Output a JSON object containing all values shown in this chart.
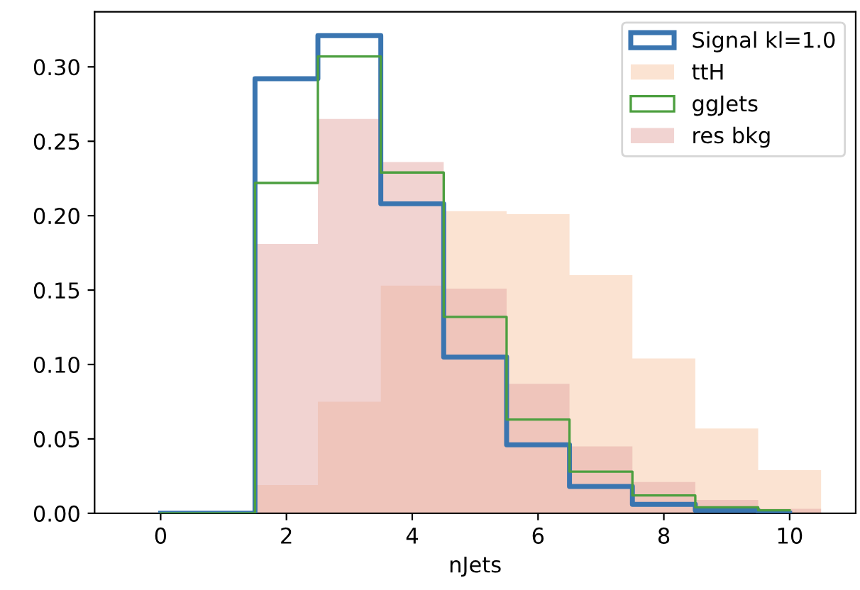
{
  "chart_data": {
    "type": "histogram",
    "xlabel": "nJets",
    "bins": [
      -0.5,
      0.5,
      1.5,
      2.5,
      3.5,
      4.5,
      5.5,
      6.5,
      7.5,
      8.5,
      9.5,
      10.5
    ],
    "series": [
      {
        "name": "Signal kl=1.0",
        "type": "step",
        "color": "#3a75b0",
        "x": [
          0,
          1,
          2,
          3,
          4,
          5,
          6,
          7,
          8,
          9,
          10
        ],
        "values": [
          0,
          0,
          0.292,
          0.321,
          0.208,
          0.105,
          0.046,
          0.018,
          0.006,
          0.002,
          0
        ]
      },
      {
        "name": "ttH",
        "color": "#fbe3d2",
        "values": [
          0,
          0,
          0.019,
          0.075,
          0.153,
          0.203,
          0.201,
          0.16,
          0.104,
          0.057,
          0.029
        ]
      },
      {
        "name": "ggJets",
        "type": "step",
        "color": "#4c9f3f",
        "x": [
          0,
          1,
          2,
          3,
          4,
          5,
          6,
          7,
          8,
          9,
          10
        ],
        "values": [
          0,
          0,
          0.222,
          0.307,
          0.229,
          0.132,
          0.063,
          0.028,
          0.012,
          0.004,
          0.002
        ]
      },
      {
        "name": "res bkg",
        "color": "#f1d3d1",
        "values": [
          0,
          0,
          0.181,
          0.265,
          0.236,
          0.151,
          0.087,
          0.045,
          0.021,
          0.009,
          0.003
        ]
      }
    ],
    "xlim": [
      -1.05,
      11.05
    ],
    "ylim": [
      0,
      0.337
    ],
    "xticks": [
      0,
      2,
      4,
      6,
      8,
      10
    ],
    "yticks": [
      {
        "value": 0,
        "label": "0.00"
      },
      {
        "value": 0.05,
        "label": "0.05"
      },
      {
        "value": 0.1,
        "label": "0.10"
      },
      {
        "value": 0.15,
        "label": "0.15"
      },
      {
        "value": 0.2,
        "label": "0.20"
      },
      {
        "value": 0.25,
        "label": "0.25"
      },
      {
        "value": 0.3,
        "label": "0.30"
      }
    ],
    "legend": "top right",
    "grid": false
  }
}
